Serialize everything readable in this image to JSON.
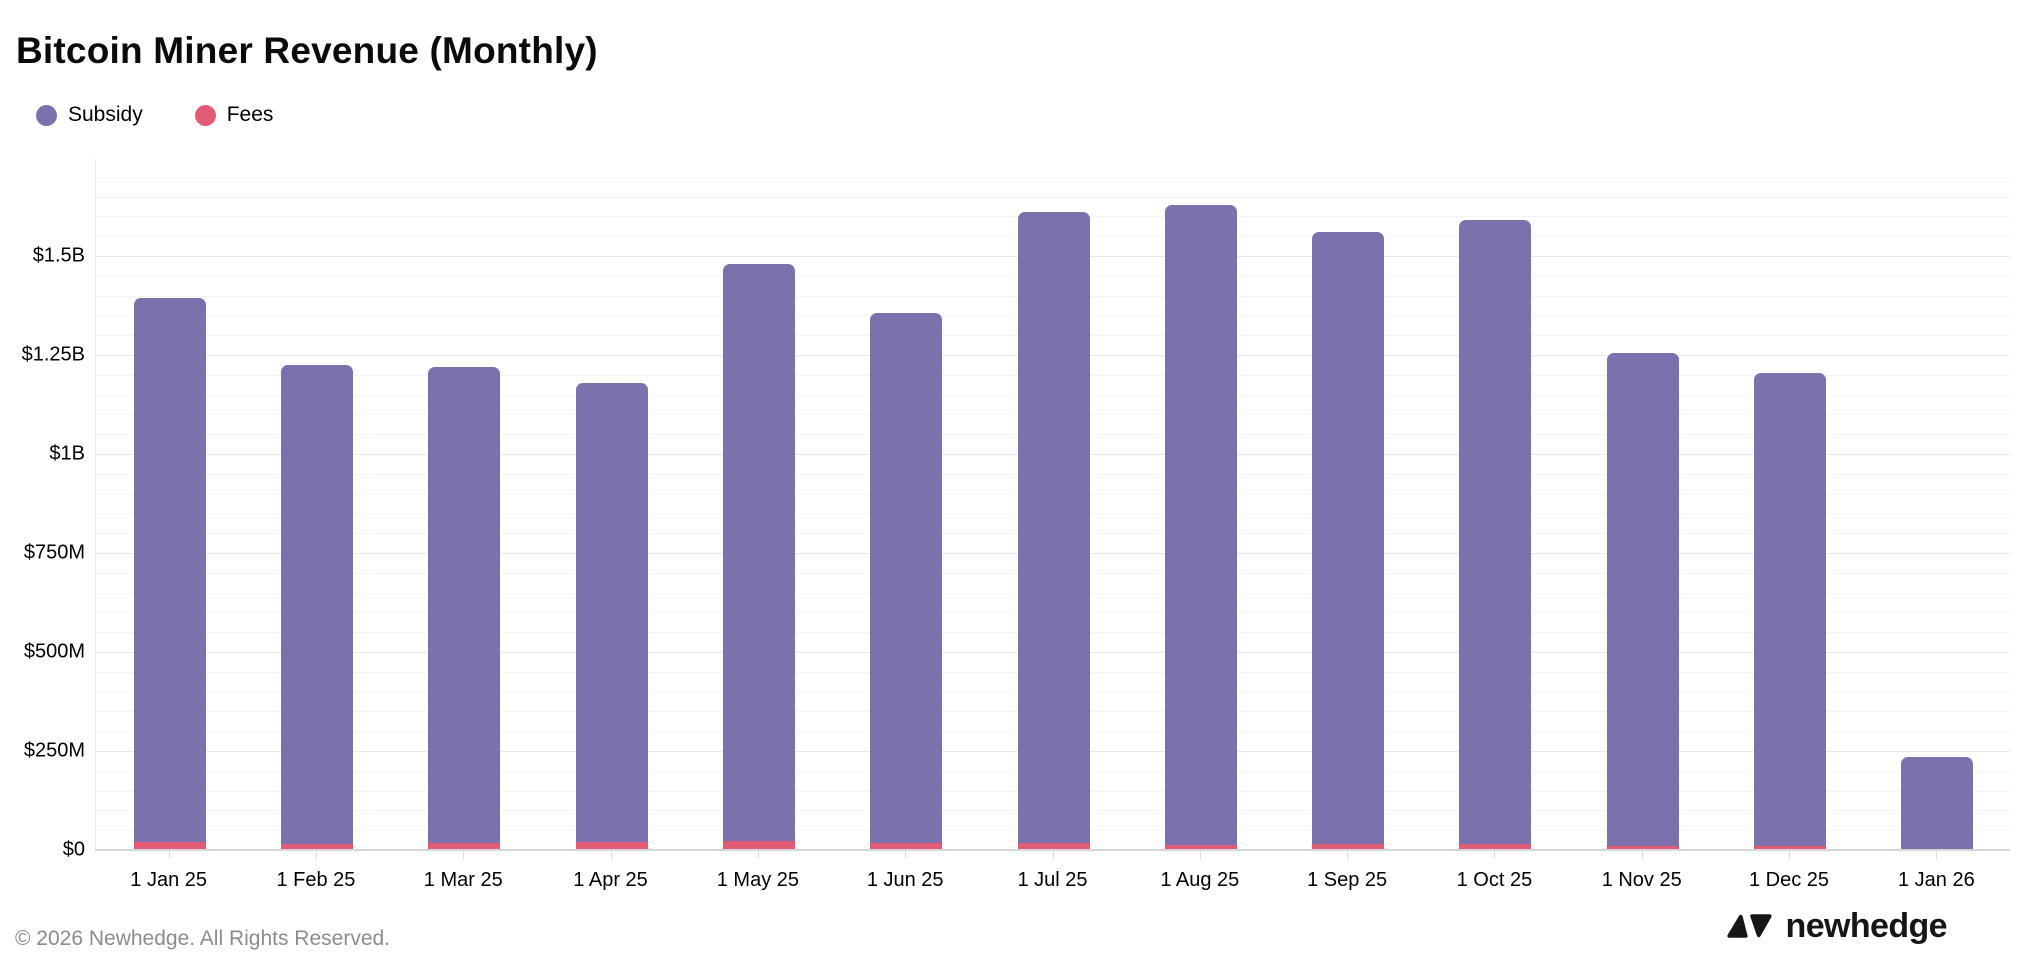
{
  "header": {
    "title": "Bitcoin Miner Revenue (Monthly)"
  },
  "legend": [
    {
      "label": "Subsidy",
      "color": "#7C70AD"
    },
    {
      "label": "Fees",
      "color": "#E15C74"
    }
  ],
  "chart_data": {
    "type": "bar",
    "stacked": true,
    "title": "Bitcoin Miner Revenue (Monthly)",
    "categories": [
      "1 Jan 25",
      "1 Feb 25",
      "1 Mar 25",
      "1 Apr 25",
      "1 May 25",
      "1 Jun 25",
      "1 Jul 25",
      "1 Aug 25",
      "1 Sep 25",
      "1 Oct 25",
      "1 Nov 25",
      "1 Dec 25",
      "1 Jan 26"
    ],
    "series": [
      {
        "name": "Fees",
        "color": "#E15C74",
        "stack_order": "bottom",
        "values_musd": [
          21,
          15,
          18,
          19,
          22,
          18,
          18,
          13,
          15,
          15,
          9,
          11,
          2
        ]
      },
      {
        "name": "Subsidy",
        "color": "#7C70AD",
        "stack_order": "top",
        "values_musd": [
          1374,
          1210,
          1202,
          1160,
          1458,
          1337,
          1592,
          1617,
          1545,
          1575,
          1246,
          1194,
          233
        ]
      }
    ],
    "totals_musd": [
      1395,
      1225,
      1220,
      1179,
      1480,
      1355,
      1610,
      1630,
      1560,
      1590,
      1255,
      1205,
      235
    ],
    "yticks": [
      {
        "value_musd": 0,
        "label": "$0"
      },
      {
        "value_musd": 250,
        "label": "$250M"
      },
      {
        "value_musd": 500,
        "label": "$500M"
      },
      {
        "value_musd": 750,
        "label": "$750M"
      },
      {
        "value_musd": 1000,
        "label": "$1B"
      },
      {
        "value_musd": 1250,
        "label": "$1.25B"
      },
      {
        "value_musd": 1500,
        "label": "$1.5B"
      }
    ],
    "minor_grid_step_musd": 50,
    "ylim_musd": [
      0,
      1747
    ],
    "xlabel": "",
    "ylabel": "",
    "grid": "horizontal only",
    "legend_position": "top-left"
  },
  "footer": {
    "copyright": "© 2026 Newhedge. All Rights Reserved.",
    "brand": "newhedge",
    "logo_icon": "newhedge-logo"
  }
}
